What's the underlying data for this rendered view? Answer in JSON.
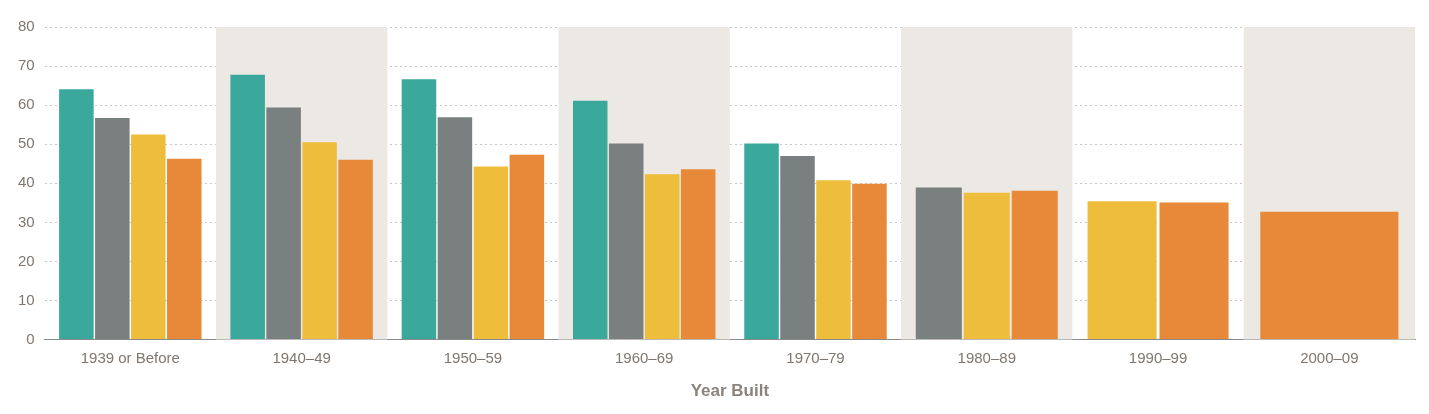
{
  "chart_data": {
    "type": "bar",
    "xlabel": "Year Built",
    "categories": [
      "1939 or Before",
      "1940–49",
      "1950–59",
      "1960–69",
      "1970–79",
      "1980–89",
      "1990–99",
      "2000–09"
    ],
    "series": [
      {
        "color": "#3aa89a",
        "values": [
          64.1,
          67.8,
          66.6,
          61.1,
          50.2,
          null,
          null,
          null
        ]
      },
      {
        "color": "#7a8080",
        "values": [
          56.7,
          59.4,
          56.9,
          50.2,
          47.0,
          38.9,
          null,
          null
        ]
      },
      {
        "color": "#eebd3c",
        "values": [
          52.5,
          50.5,
          44.3,
          42.3,
          40.8,
          37.6,
          35.4,
          null
        ]
      },
      {
        "color": "#e8893a",
        "values": [
          46.3,
          46.0,
          47.3,
          43.6,
          39.9,
          38.1,
          35.1,
          32.7
        ]
      }
    ],
    "ylim": [
      0,
      80
    ],
    "yticks": [
      0,
      10,
      20,
      30,
      40,
      50,
      60,
      70,
      80
    ],
    "grid": "y",
    "legend": false,
    "bands": [
      {
        "axis": "x",
        "from": "1940–49",
        "to": "1940–49",
        "color": "#ece8e3"
      },
      {
        "axis": "x",
        "from": "1960–69",
        "to": "1960–69",
        "color": "#ece8e3"
      },
      {
        "axis": "x",
        "from": "1980–89",
        "to": "1980–89",
        "color": "#ece8e3"
      },
      {
        "axis": "x",
        "from": "2000–09",
        "to": "2000–09",
        "color": "#ece8e3"
      }
    ]
  }
}
